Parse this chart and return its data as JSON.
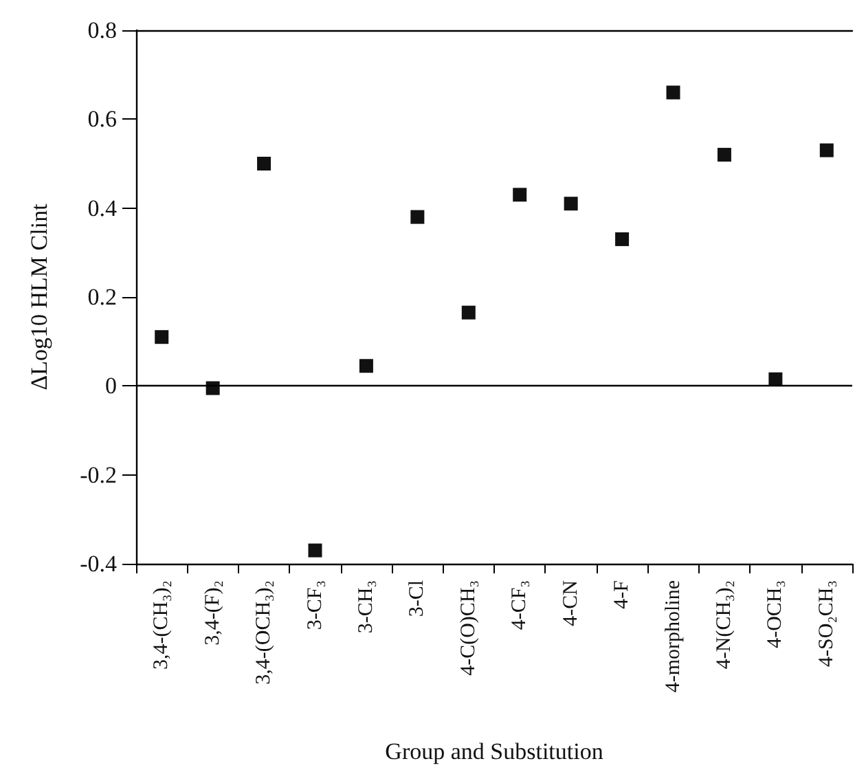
{
  "chart_data": {
    "type": "scatter",
    "xlabel": "Group and Substitution",
    "ylabel": "ΔLog10 HLM Clint",
    "categories": [
      "3,4-(CH₃)₂",
      "3,4-(F)₂",
      "3,4-(OCH₃)₂",
      "3-CF₃",
      "3-CH₃",
      "3-Cl",
      "4-C(O)CH₃",
      "4-CF₃",
      "4-CN",
      "4-F",
      "4-morpholine",
      "4-N(CH₃)₂",
      "4-OCH₃",
      "4-SO₂CH₃"
    ],
    "series": [
      {
        "color": "#111111",
        "values": [
          0.11,
          -0.005,
          0.5,
          -0.37,
          0.045,
          0.38,
          0.165,
          0.43,
          0.41,
          0.33,
          0.66,
          0.52,
          0.015,
          0.53
        ]
      }
    ],
    "ylim": [
      -0.4,
      0.8
    ],
    "yticks": [
      -0.4,
      -0.2,
      0,
      0.2,
      0.4,
      0.6,
      0.8
    ],
    "ref_lines": [
      {
        "axis": "y",
        "value": 0,
        "color": "#000000"
      }
    ],
    "marker": "square",
    "grid": false
  }
}
